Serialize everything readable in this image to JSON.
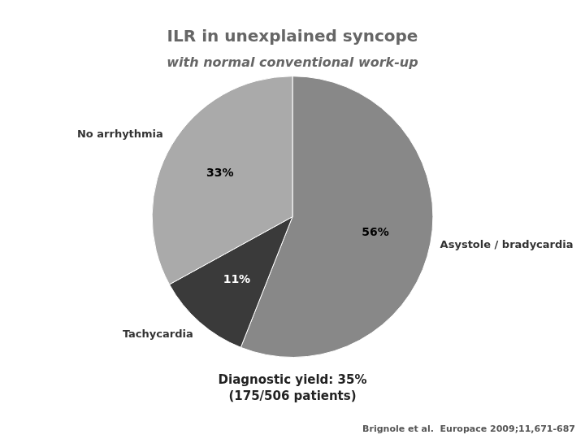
{
  "chart_data": {
    "type": "pie",
    "title": "ILR in unexplained syncope",
    "subtitle": "with normal conventional work-up",
    "categories": [
      "Asystole / bradycardia",
      "Tachycardia",
      "No arrhythmia"
    ],
    "values": [
      56,
      11,
      33
    ],
    "value_labels": [
      "56%",
      "11%",
      "33%"
    ],
    "colors": [
      "#888888",
      "#3a3a3a",
      "#aaaaaa"
    ],
    "data_labels": true,
    "annotations": [
      "Diagnostic yield: 35%\n(175/506 patients)",
      "Brignole et al.  Europace 2009;11,671-687"
    ]
  }
}
